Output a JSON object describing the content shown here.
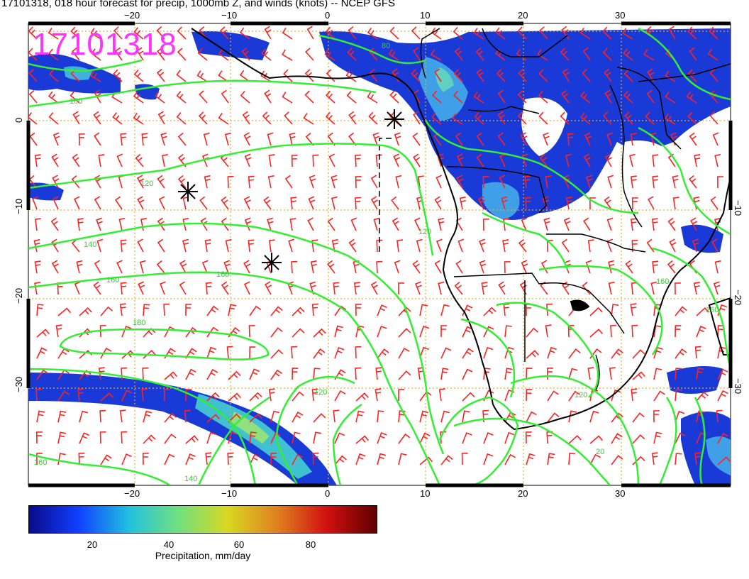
{
  "header": {
    "title": "17101318, 018 hour forecast for precip, 1000mb Z, and winds (knots) -- NCEP GFS"
  },
  "stamp": {
    "text": "17101318",
    "color": "#ff33ff"
  },
  "map": {
    "lon_labels_top": [
      "−20",
      "−10",
      "0",
      "10",
      "20",
      "30"
    ],
    "lon_labels_bottom": [
      "−20",
      "−10",
      "0",
      "10",
      "20",
      "30"
    ],
    "lat_labels_left": [
      "0",
      "−10",
      "−20",
      "−30"
    ],
    "lat_labels_right": [
      "−10",
      "−20",
      "−30"
    ],
    "contour_labels": [
      "160",
      "120",
      "140",
      "160",
      "160",
      "180",
      "160",
      "140",
      "120",
      "80",
      "120",
      "160",
      "160",
      "120",
      "20"
    ],
    "colors": {
      "contour": "#33ee33",
      "wind_barbs": "#ff2020",
      "grid": "#e0b030",
      "coast": "#000000"
    }
  },
  "colorbar": {
    "ticks": [
      "20",
      "40",
      "60",
      "80"
    ],
    "label": "Precipitation, mm/day",
    "colors": [
      "#0a0a8a",
      "#1040ff",
      "#20c0e0",
      "#70e080",
      "#d8d820",
      "#e08020",
      "#d01010",
      "#600000"
    ]
  }
}
